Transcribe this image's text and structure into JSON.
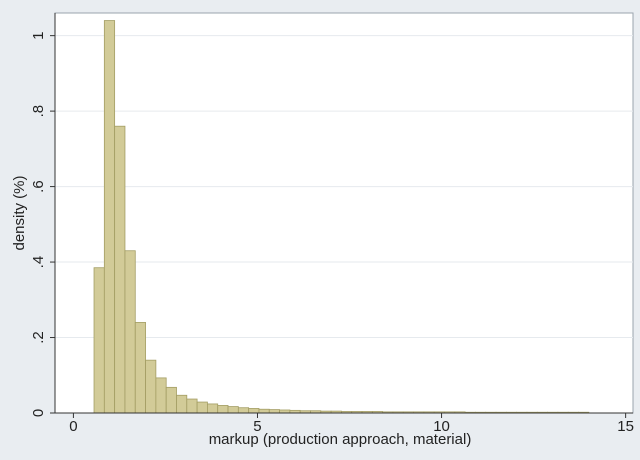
{
  "chart_data": {
    "type": "bar",
    "subtype": "histogram",
    "title": "",
    "xlabel": "markup (production approach, material)",
    "ylabel": "density (%)",
    "xlim": [
      -0.5,
      15.2
    ],
    "ylim": [
      0,
      1.06
    ],
    "x_ticks": [
      0,
      5,
      10,
      15
    ],
    "x_tick_labels": [
      "0",
      "5",
      "10",
      "15"
    ],
    "y_ticks": [
      0,
      0.2,
      0.4,
      0.6,
      0.8,
      1.0
    ],
    "y_tick_labels": [
      "0",
      ".2",
      ".4",
      ".6",
      ".8",
      "1"
    ],
    "grid": true,
    "bar_color": "#d2cb98",
    "bar_edge_color": "#a39d63",
    "bin_width": 0.28,
    "bin_start": 0.56,
    "values": [
      0.385,
      1.04,
      0.76,
      0.43,
      0.24,
      0.14,
      0.093,
      0.068,
      0.047,
      0.037,
      0.029,
      0.024,
      0.02,
      0.017,
      0.014,
      0.012,
      0.01,
      0.009,
      0.008,
      0.007,
      0.006,
      0.006,
      0.005,
      0.005,
      0.004,
      0.004,
      0.004,
      0.004,
      0.003,
      0.003,
      0.003,
      0.003,
      0.003,
      0.003,
      0.003,
      0.003,
      0.002,
      0.002,
      0.002,
      0.002,
      0.002,
      0.002,
      0.002,
      0.002,
      0.002,
      0.002,
      0.002,
      0.002
    ]
  }
}
